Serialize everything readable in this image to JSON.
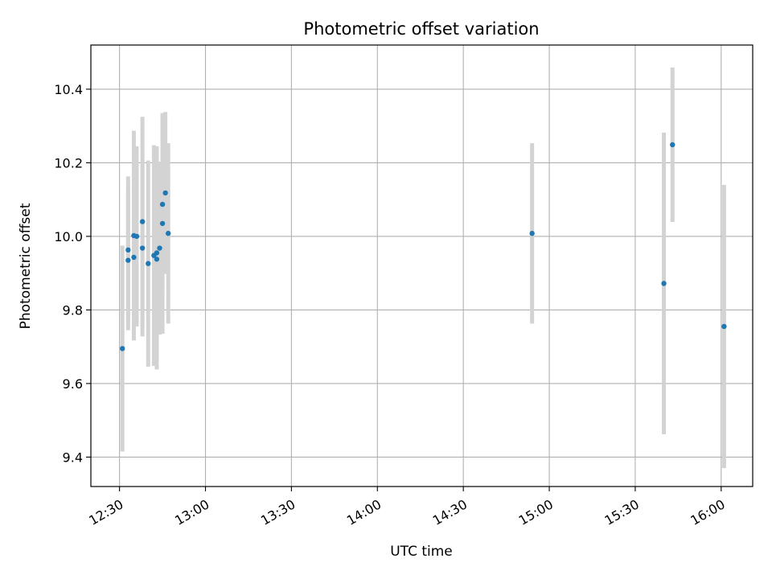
{
  "chart_data": {
    "type": "scatter",
    "title": "Photometric offset variation",
    "xlabel": "UTC time",
    "ylabel": "Photometric offset",
    "x_tick_labels": [
      "12:30",
      "13:00",
      "13:30",
      "14:00",
      "14:30",
      "15:00",
      "15:30",
      "16:00"
    ],
    "x_ticks": [
      "12:30",
      "13:00",
      "13:30",
      "14:00",
      "14:30",
      "15:00",
      "15:30",
      "16:00"
    ],
    "y_ticks": [
      9.4,
      9.6,
      9.8,
      10.0,
      10.2,
      10.4
    ],
    "y_tick_labels": [
      "9.4",
      "9.6",
      "9.8",
      "10.0",
      "10.2",
      "10.4"
    ],
    "xlim": [
      "12:20",
      "16:11"
    ],
    "ylim": [
      9.32,
      10.52
    ],
    "grid": true,
    "marker_color": "#1f77b4",
    "errorbar_color": "#d3d3d3",
    "series": [
      {
        "points": [
          {
            "x": "12:31",
            "y": 9.695,
            "err": 0.28
          },
          {
            "x": "12:33",
            "y": 9.935,
            "err": 0.19
          },
          {
            "x": "12:33",
            "y": 9.963,
            "err": 0.2
          },
          {
            "x": "12:35",
            "y": 9.943,
            "err": 0.2
          },
          {
            "x": "12:35",
            "y": 10.002,
            "err": 0.285
          },
          {
            "x": "12:36",
            "y": 10.0,
            "err": 0.245
          },
          {
            "x": "12:38",
            "y": 9.968,
            "err": 0.24
          },
          {
            "x": "12:38",
            "y": 10.04,
            "err": 0.285
          },
          {
            "x": "12:40",
            "y": 9.926,
            "err": 0.28
          },
          {
            "x": "12:42",
            "y": 9.948,
            "err": 0.3
          },
          {
            "x": "12:43",
            "y": 9.938,
            "err": 0.3
          },
          {
            "x": "12:43",
            "y": 9.955,
            "err": 0.29
          },
          {
            "x": "12:44",
            "y": 9.968,
            "err": 0.235
          },
          {
            "x": "12:45",
            "y": 10.035,
            "err": 0.3
          },
          {
            "x": "12:45",
            "y": 10.087,
            "err": 0.24
          },
          {
            "x": "12:46",
            "y": 10.118,
            "err": 0.22
          },
          {
            "x": "12:47",
            "y": 10.008,
            "err": 0.245
          },
          {
            "x": "14:54",
            "y": 10.008,
            "err": 0.245
          },
          {
            "x": "15:40",
            "y": 9.872,
            "err": 0.41
          },
          {
            "x": "15:43",
            "y": 10.249,
            "err": 0.21
          },
          {
            "x": "16:01",
            "y": 9.755,
            "err": 0.385
          }
        ]
      }
    ]
  }
}
